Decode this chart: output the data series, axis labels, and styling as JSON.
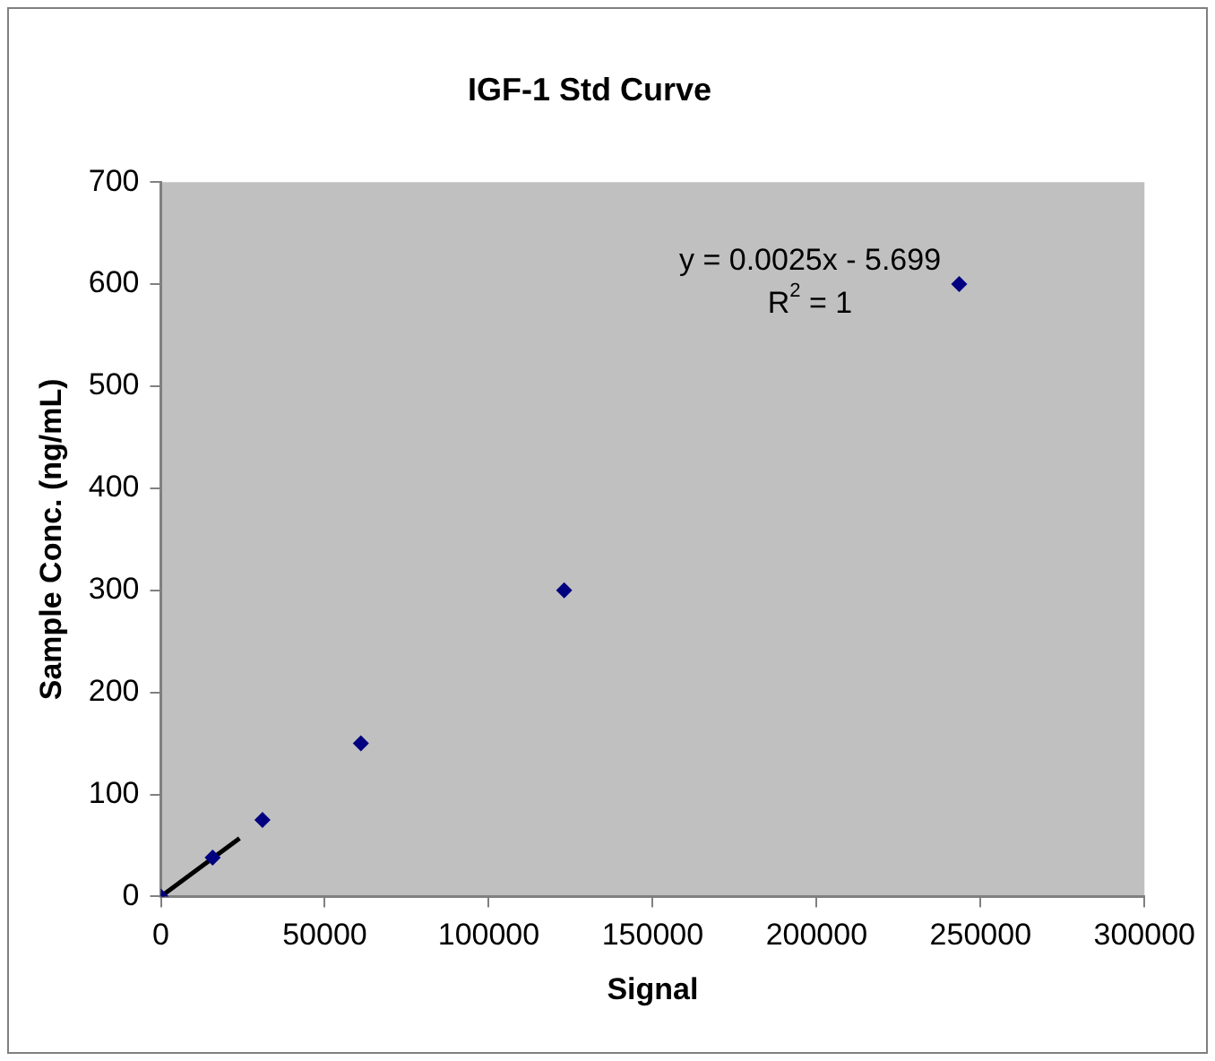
{
  "chart_data": {
    "type": "scatter",
    "title": "IGF-1 Std Curve",
    "xlabel": "Signal",
    "ylabel": "Sample Conc. (ng/mL)",
    "series": [
      {
        "type": "scatter",
        "color": "#000080",
        "marker": "diamond",
        "x": [
          0,
          15800,
          31000,
          61000,
          123000,
          243500
        ],
        "values": [
          0,
          38,
          75,
          150,
          300,
          600
        ]
      },
      {
        "type": "line",
        "color": "#000000",
        "marker": "none",
        "x": [
          0,
          24000
        ],
        "values": [
          0,
          57
        ]
      }
    ],
    "xlim": [
      0,
      300000
    ],
    "xticks": [
      0,
      50000,
      100000,
      150000,
      200000,
      250000,
      300000
    ],
    "ylim": [
      0,
      700
    ],
    "yticks": [
      0,
      100,
      200,
      300,
      400,
      500,
      600,
      700
    ],
    "annotations": [
      "y = 0.0025x - 5.699",
      "R$^{2}$ = 1"
    ],
    "grid": false,
    "legend": false
  }
}
